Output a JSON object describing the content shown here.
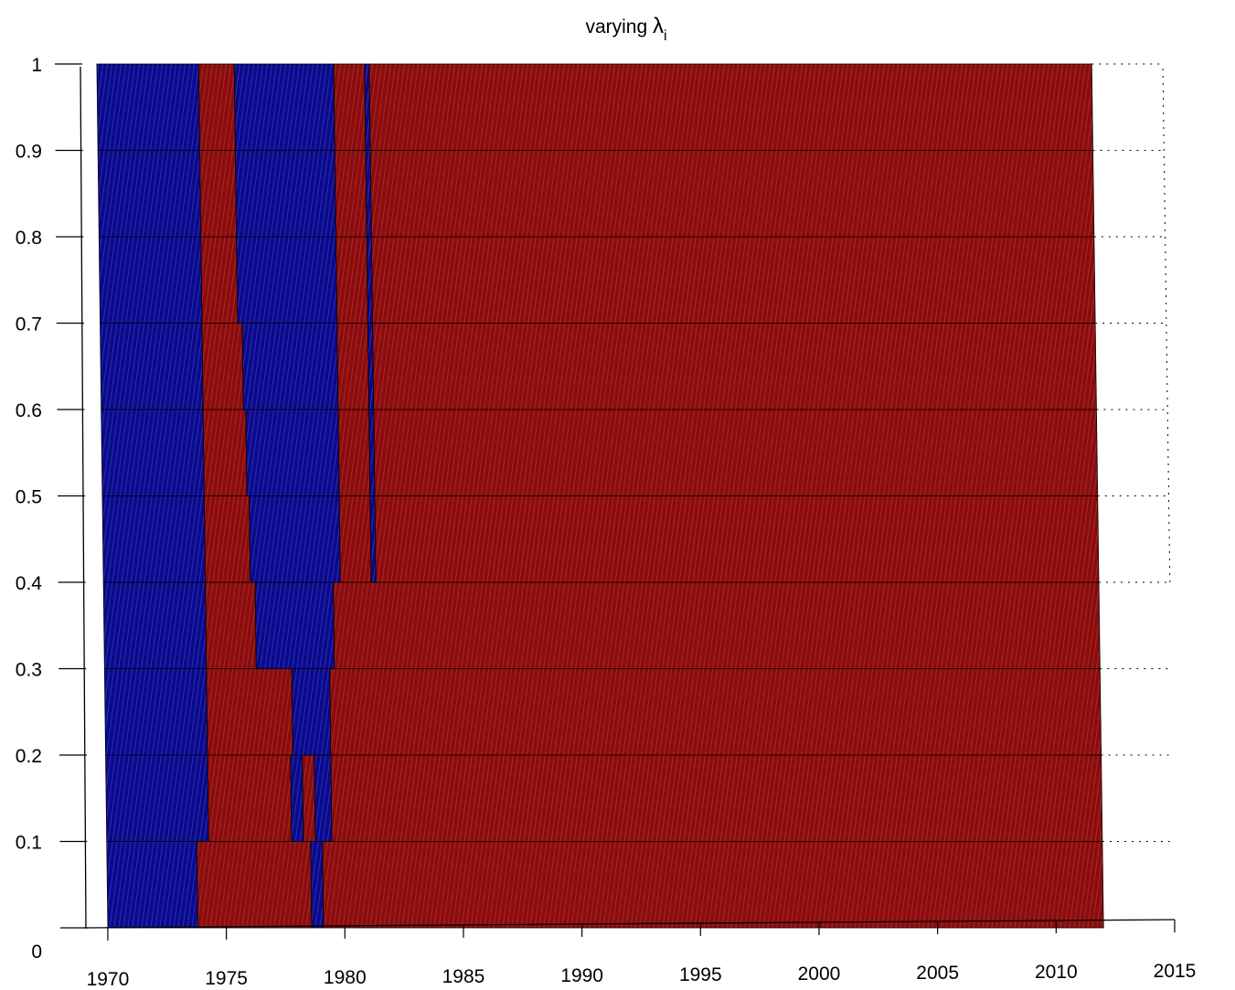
{
  "chart_data": {
    "type": "heatmap",
    "title": "varying ",
    "title_symbol": "λ",
    "title_subscript": "i",
    "xlim": [
      1969,
      2015
    ],
    "ylim": [
      0,
      1
    ],
    "xticks": [
      1970,
      1975,
      1980,
      1985,
      1990,
      1995,
      2000,
      2005,
      2010,
      2015
    ],
    "yticks": [
      "0",
      "0.1",
      "0.2",
      "0.3",
      "0.4",
      "0.5",
      "0.6",
      "0.7",
      "0.8",
      "0.9",
      "1"
    ],
    "x_start": 1970,
    "x_end": 2012,
    "grid": true,
    "colors": {
      "blue": "#0a0a8c",
      "red": "#8a0c0c",
      "edge": "#000000",
      "blue_stripe": "#3f3fc0",
      "red_stripe": "#b83a3a"
    },
    "row_y_values": [
      0,
      0.1,
      0.2,
      0.3,
      0.4,
      0.5,
      0.6,
      0.7,
      0.8,
      0.9
    ],
    "rows": [
      {
        "y": 0.0,
        "blue_intervals": [
          [
            1970.0,
            1973.8
          ],
          [
            1978.6,
            1979.1
          ]
        ]
      },
      {
        "y": 0.1,
        "blue_intervals": [
          [
            1970.0,
            1974.3
          ],
          [
            1977.8,
            1978.3
          ],
          [
            1978.8,
            1979.5
          ]
        ]
      },
      {
        "y": 0.2,
        "blue_intervals": [
          [
            1970.0,
            1974.3
          ],
          [
            1977.9,
            1979.5
          ]
        ]
      },
      {
        "y": 0.3,
        "blue_intervals": [
          [
            1970.0,
            1974.3
          ],
          [
            1976.4,
            1979.7
          ]
        ]
      },
      {
        "y": 0.4,
        "blue_intervals": [
          [
            1970.0,
            1974.3
          ],
          [
            1976.2,
            1980.0
          ],
          [
            1981.3,
            1981.5
          ]
        ]
      },
      {
        "y": 0.5,
        "blue_intervals": [
          [
            1970.0,
            1974.3
          ],
          [
            1976.1,
            1980.0
          ],
          [
            1981.3,
            1981.5
          ]
        ]
      },
      {
        "y": 0.6,
        "blue_intervals": [
          [
            1970.0,
            1974.3
          ],
          [
            1976.0,
            1980.0
          ],
          [
            1981.3,
            1981.5
          ]
        ]
      },
      {
        "y": 0.7,
        "blue_intervals": [
          [
            1970.0,
            1974.3
          ],
          [
            1975.8,
            1980.0
          ],
          [
            1981.3,
            1981.5
          ]
        ]
      },
      {
        "y": 0.8,
        "blue_intervals": [
          [
            1970.0,
            1974.3
          ],
          [
            1975.8,
            1980.0
          ],
          [
            1981.3,
            1981.5
          ]
        ]
      },
      {
        "y": 0.9,
        "blue_intervals": [
          [
            1970.0,
            1974.3
          ],
          [
            1975.8,
            1980.0
          ],
          [
            1981.3,
            1981.5
          ]
        ]
      }
    ]
  }
}
